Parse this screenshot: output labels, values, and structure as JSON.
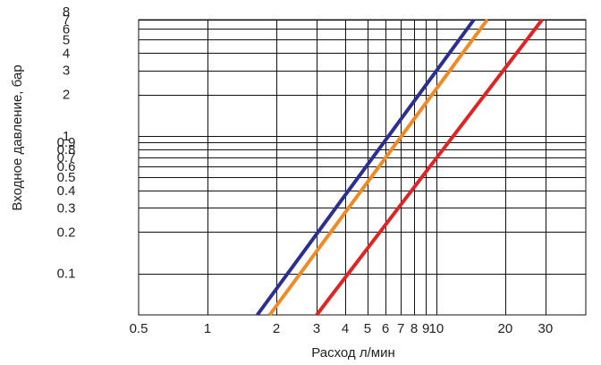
{
  "chart_data": {
    "type": "line",
    "xscale": "log",
    "yscale": "log",
    "xlim": [
      0.5,
      45
    ],
    "ylim": [
      0.05,
      7
    ],
    "xlabel": "Расход л/мин",
    "ylabel": "Входное давление, бар",
    "grid": true,
    "legend": "none",
    "xticks": [
      {
        "value": 0.5,
        "label": "0.5"
      },
      {
        "value": 1,
        "label": "1"
      },
      {
        "value": 2,
        "label": "2"
      },
      {
        "value": 3,
        "label": "3"
      },
      {
        "value": 4,
        "label": "4"
      },
      {
        "value": 5,
        "label": "5"
      },
      {
        "value": 6,
        "label": "6"
      },
      {
        "value": 7,
        "label": "7"
      },
      {
        "value": 8,
        "label": "8"
      },
      {
        "value": 9,
        "label": "9"
      },
      {
        "value": 10,
        "label": "10"
      },
      {
        "value": 20,
        "label": "20"
      },
      {
        "value": 30,
        "label": "30"
      }
    ],
    "yticks": [
      {
        "value": 0.1,
        "label": "0.1"
      },
      {
        "value": 0.2,
        "label": "0.2"
      },
      {
        "value": 0.3,
        "label": "0.3"
      },
      {
        "value": 0.4,
        "label": "0.4"
      },
      {
        "value": 0.5,
        "label": "0.5"
      },
      {
        "value": 0.6,
        "label": "0.6"
      },
      {
        "value": 0.7,
        "label": "0.7"
      },
      {
        "value": 0.8,
        "label": "0.8"
      },
      {
        "value": 0.9,
        "label": "0.9"
      },
      {
        "value": 1,
        "label": "1"
      },
      {
        "value": 2,
        "label": "2"
      },
      {
        "value": 3,
        "label": "3"
      },
      {
        "value": 4,
        "label": "4"
      },
      {
        "value": 5,
        "label": "5"
      },
      {
        "value": 6,
        "label": "6"
      },
      {
        "value": 7,
        "label": "7"
      },
      {
        "value": 8,
        "label": "8"
      }
    ],
    "x_gridlines": [
      1,
      2,
      3,
      4,
      5,
      6,
      7,
      8,
      9,
      10,
      20,
      30
    ],
    "y_gridlines": [
      0.1,
      0.2,
      0.3,
      0.4,
      0.5,
      0.6,
      0.7,
      0.8,
      0.9,
      1,
      2,
      3,
      4,
      5,
      6,
      7
    ],
    "series": [
      {
        "color": "#2b2f8f",
        "points": [
          [
            1.65,
            0.05
          ],
          [
            14.6,
            7.0
          ]
        ]
      },
      {
        "color": "#f08a24",
        "points": [
          [
            1.87,
            0.05
          ],
          [
            16.7,
            7.0
          ]
        ]
      },
      {
        "color": "#e02424",
        "points": [
          [
            3.0,
            0.05
          ],
          [
            29.0,
            7.0
          ]
        ]
      }
    ]
  }
}
